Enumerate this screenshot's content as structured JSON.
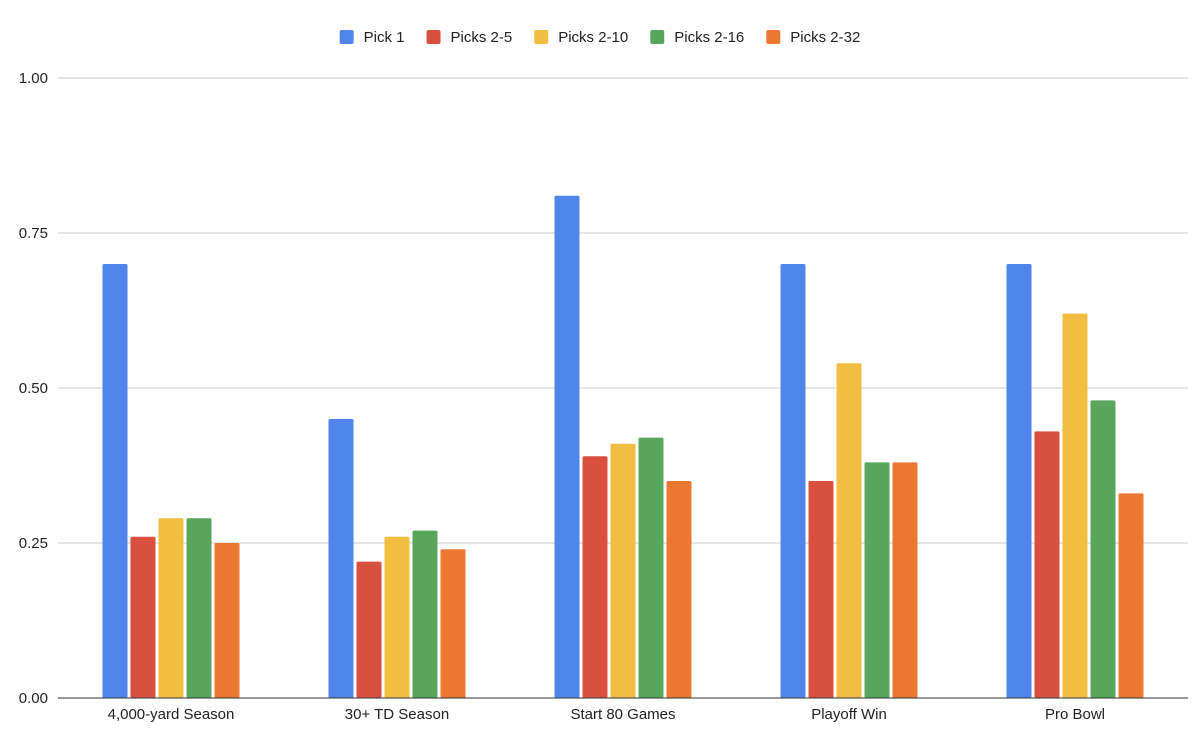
{
  "chart_data": {
    "type": "bar",
    "title": "",
    "xlabel": "",
    "ylabel": "",
    "ylim": [
      0,
      1
    ],
    "yticks": [
      0,
      0.25,
      0.5,
      0.75,
      1
    ],
    "ytick_labels": [
      "0.00",
      "0.25",
      "0.50",
      "0.75",
      "1.00"
    ],
    "grid": true,
    "legend_position": "top-center",
    "categories": [
      "4,000-yard Season",
      "30+ TD Season",
      "Start 80 Games",
      "Playoff Win",
      "Pro Bowl"
    ],
    "series": [
      {
        "name": "Pick 1",
        "color": "#5085EC",
        "values": [
          0.7,
          0.45,
          0.81,
          0.7,
          0.7
        ]
      },
      {
        "name": "Picks 2-5",
        "color": "#D95040",
        "values": [
          0.26,
          0.22,
          0.39,
          0.35,
          0.43
        ]
      },
      {
        "name": "Picks 2-10",
        "color": "#F2BE42",
        "values": [
          0.29,
          0.26,
          0.41,
          0.54,
          0.62
        ]
      },
      {
        "name": "Picks 2-16",
        "color": "#58A65C",
        "values": [
          0.29,
          0.27,
          0.42,
          0.38,
          0.48
        ]
      },
      {
        "name": "Picks 2-32",
        "color": "#EC7731",
        "values": [
          0.25,
          0.24,
          0.35,
          0.38,
          0.33
        ]
      }
    ]
  }
}
